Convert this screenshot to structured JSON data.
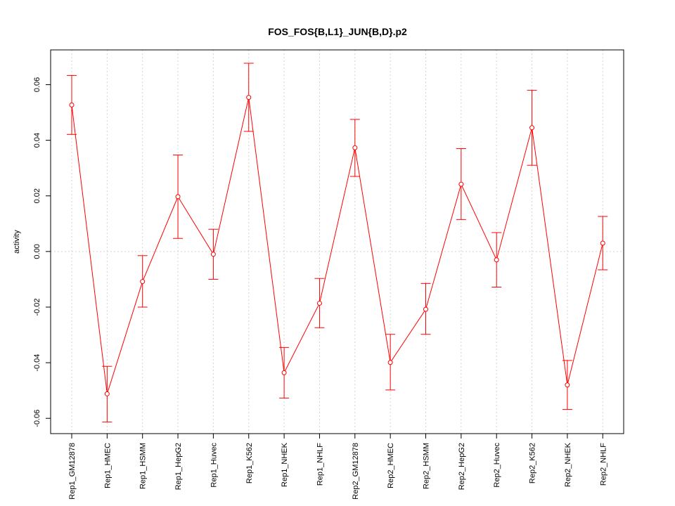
{
  "chart_data": {
    "type": "line",
    "title": "FOS_FOS{B,L1}_JUN{B,D}.p2",
    "xlabel": "",
    "ylabel": "activity",
    "categories": [
      "Rep1_GM12878",
      "Rep1_HMEC",
      "Rep1_HSMM",
      "Rep1_HepG2",
      "Rep1_Huvec",
      "Rep1_K562",
      "Rep1_NHEK",
      "Rep1_NHLF",
      "Rep2_GM12878",
      "Rep2_HMEC",
      "Rep2_HSMM",
      "Rep2_HepG2",
      "Rep2_Huvec",
      "Rep2_K562",
      "Rep2_NHEK",
      "Rep2_NHLF"
    ],
    "values": [
      0.0527,
      -0.0512,
      -0.0108,
      0.0197,
      -0.001,
      0.0554,
      -0.0436,
      -0.0186,
      0.0373,
      -0.0399,
      -0.0208,
      0.0242,
      -0.003,
      0.0445,
      -0.048,
      0.003
    ],
    "err_upper": [
      0.0633,
      -0.0413,
      -0.0015,
      0.0347,
      0.008,
      0.0677,
      -0.0345,
      -0.0097,
      0.0475,
      -0.0298,
      -0.0115,
      0.037,
      0.0068,
      0.058,
      -0.0392,
      0.0126
    ],
    "err_lower": [
      0.0421,
      -0.0613,
      -0.02,
      0.0047,
      -0.01,
      0.0432,
      -0.0527,
      -0.0274,
      0.027,
      -0.0498,
      -0.0298,
      0.0115,
      -0.0128,
      0.031,
      -0.0568,
      -0.0066
    ],
    "ylim": [
      -0.0655,
      0.0725
    ],
    "yticks": [
      -0.06,
      -0.04,
      -0.02,
      0.0,
      0.02,
      0.04,
      0.06
    ],
    "ytick_labels": [
      "-0.06",
      "-0.04",
      "-0.02",
      "0.00",
      "0.02",
      "0.04",
      "0.06"
    ],
    "grid": true,
    "series_color": "#ff0000",
    "grid_color": "#d3d3d3"
  }
}
